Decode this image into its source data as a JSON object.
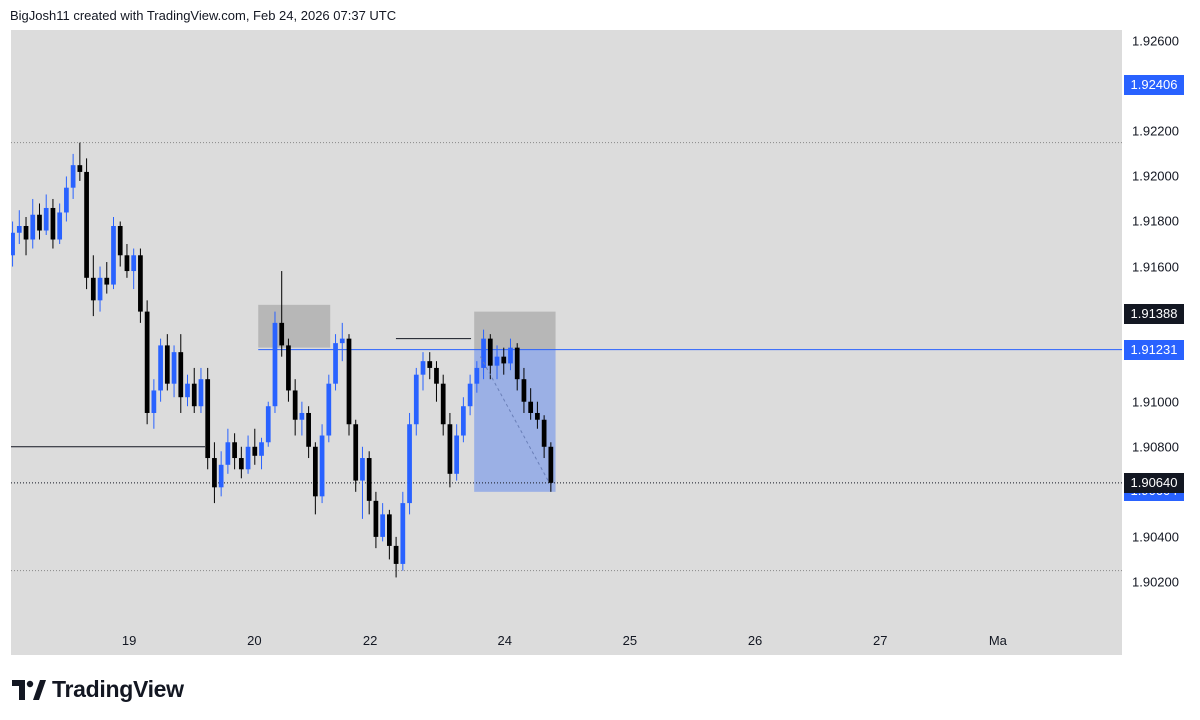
{
  "header": {
    "caption": "BigJosh11 created with TradingView.com, Feb 24, 2026 07:37 UTC"
  },
  "brand": {
    "name": "TradingView",
    "logo_icon": "tradingview-logo-icon"
  },
  "chart_data": {
    "type": "candlestick",
    "ylim": [
      1.9,
      1.9265
    ],
    "x_domain": [
      0,
      35.5
    ],
    "time_ticks": [
      {
        "x": 3.8,
        "label": "19"
      },
      {
        "x": 7.8,
        "label": "20"
      },
      {
        "x": 11.5,
        "label": "22"
      },
      {
        "x": 15.8,
        "label": "24"
      },
      {
        "x": 19.8,
        "label": "25"
      },
      {
        "x": 23.8,
        "label": "26"
      },
      {
        "x": 27.8,
        "label": "27"
      },
      {
        "x": 31.5,
        "label": "Ma"
      }
    ],
    "price_ticks": [
      "1.92600",
      "1.92200",
      "1.92000",
      "1.91800",
      "1.91600",
      "1.91000",
      "1.90800",
      "1.90400",
      "1.90200"
    ],
    "price_ticks_values": [
      1.926,
      1.922,
      1.92,
      1.918,
      1.916,
      1.91,
      1.908,
      1.904,
      1.902
    ],
    "price_labels": [
      {
        "value": 1.92406,
        "label": "1.92406",
        "color": "#2962ff"
      },
      {
        "value": 1.91388,
        "label": "1.91388",
        "color": "#131722"
      },
      {
        "value": 1.91231,
        "label": "1.91231",
        "color": "#2962ff"
      },
      {
        "value": 1.90604,
        "label": "1.90604",
        "color": "#2962ff"
      },
      {
        "value": 1.9064,
        "label": "1.90640",
        "color": "#131722"
      }
    ],
    "up_color": "#2962ff",
    "down_color": "#000000",
    "ohlc": [
      [
        1.9165,
        1.918,
        1.916,
        1.9175
      ],
      [
        1.9175,
        1.9185,
        1.917,
        1.9178
      ],
      [
        1.9178,
        1.9182,
        1.9165,
        1.9172
      ],
      [
        1.9172,
        1.919,
        1.9168,
        1.9183
      ],
      [
        1.9183,
        1.9188,
        1.9172,
        1.9176
      ],
      [
        1.9176,
        1.9192,
        1.9174,
        1.9186
      ],
      [
        1.9186,
        1.919,
        1.9168,
        1.9172
      ],
      [
        1.9172,
        1.9188,
        1.917,
        1.9184
      ],
      [
        1.9184,
        1.92,
        1.918,
        1.9195
      ],
      [
        1.9195,
        1.921,
        1.919,
        1.9205
      ],
      [
        1.9205,
        1.9215,
        1.9198,
        1.9202
      ],
      [
        1.9202,
        1.9208,
        1.915,
        1.9155
      ],
      [
        1.9155,
        1.9165,
        1.9138,
        1.9145
      ],
      [
        1.9145,
        1.916,
        1.914,
        1.9155
      ],
      [
        1.9155,
        1.9162,
        1.9148,
        1.9152
      ],
      [
        1.9152,
        1.9182,
        1.915,
        1.9178
      ],
      [
        1.9178,
        1.918,
        1.916,
        1.9165
      ],
      [
        1.9165,
        1.917,
        1.9155,
        1.9158
      ],
      [
        1.9158,
        1.9168,
        1.915,
        1.9165
      ],
      [
        1.9165,
        1.9168,
        1.9135,
        1.914
      ],
      [
        1.914,
        1.9145,
        1.909,
        1.9095
      ],
      [
        1.9095,
        1.911,
        1.9088,
        1.9105
      ],
      [
        1.9105,
        1.9128,
        1.91,
        1.9125
      ],
      [
        1.9125,
        1.913,
        1.9105,
        1.9108
      ],
      [
        1.9108,
        1.9125,
        1.9102,
        1.9122
      ],
      [
        1.9122,
        1.913,
        1.9095,
        1.9102
      ],
      [
        1.9102,
        1.9112,
        1.9098,
        1.9108
      ],
      [
        1.9108,
        1.9115,
        1.9095,
        1.9098
      ],
      [
        1.9098,
        1.9115,
        1.9095,
        1.911
      ],
      [
        1.911,
        1.9115,
        1.907,
        1.9075
      ],
      [
        1.9075,
        1.9082,
        1.9055,
        1.9062
      ],
      [
        1.9062,
        1.9078,
        1.9058,
        1.9072
      ],
      [
        1.9072,
        1.9088,
        1.9068,
        1.9082
      ],
      [
        1.9082,
        1.9086,
        1.907,
        1.9075
      ],
      [
        1.9075,
        1.908,
        1.9066,
        1.907
      ],
      [
        1.907,
        1.9085,
        1.9068,
        1.908
      ],
      [
        1.908,
        1.9088,
        1.9072,
        1.9076
      ],
      [
        1.9076,
        1.9084,
        1.907,
        1.9082
      ],
      [
        1.9082,
        1.91,
        1.908,
        1.9098
      ],
      [
        1.9098,
        1.914,
        1.9095,
        1.9135
      ],
      [
        1.9135,
        1.9158,
        1.912,
        1.9125
      ],
      [
        1.9125,
        1.9128,
        1.91,
        1.9105
      ],
      [
        1.9105,
        1.911,
        1.9085,
        1.9092
      ],
      [
        1.9092,
        1.91,
        1.9085,
        1.9095
      ],
      [
        1.9095,
        1.9098,
        1.9075,
        1.908
      ],
      [
        1.908,
        1.9082,
        1.905,
        1.9058
      ],
      [
        1.9058,
        1.909,
        1.9055,
        1.9085
      ],
      [
        1.9085,
        1.9112,
        1.9082,
        1.9108
      ],
      [
        1.9108,
        1.913,
        1.9105,
        1.9126
      ],
      [
        1.9126,
        1.9135,
        1.9118,
        1.9128
      ],
      [
        1.9128,
        1.913,
        1.9085,
        1.909
      ],
      [
        1.909,
        1.9092,
        1.906,
        1.9065
      ],
      [
        1.9065,
        1.908,
        1.9048,
        1.9075
      ],
      [
        1.9075,
        1.9078,
        1.905,
        1.9056
      ],
      [
        1.9056,
        1.906,
        1.9035,
        1.904
      ],
      [
        1.904,
        1.9055,
        1.9038,
        1.905
      ],
      [
        1.905,
        1.9052,
        1.903,
        1.9036
      ],
      [
        1.9036,
        1.904,
        1.9022,
        1.9028
      ],
      [
        1.9028,
        1.906,
        1.9025,
        1.9055
      ],
      [
        1.9055,
        1.9095,
        1.905,
        1.909
      ],
      [
        1.909,
        1.9115,
        1.9085,
        1.9112
      ],
      [
        1.9112,
        1.9122,
        1.9105,
        1.9118
      ],
      [
        1.9118,
        1.9122,
        1.911,
        1.9115
      ],
      [
        1.9115,
        1.9118,
        1.91,
        1.9108
      ],
      [
        1.9108,
        1.9112,
        1.9085,
        1.909
      ],
      [
        1.909,
        1.9095,
        1.9062,
        1.9068
      ],
      [
        1.9068,
        1.909,
        1.9065,
        1.9085
      ],
      [
        1.9085,
        1.9102,
        1.9082,
        1.9098
      ],
      [
        1.9098,
        1.9112,
        1.9094,
        1.9108
      ],
      [
        1.9108,
        1.9118,
        1.9104,
        1.9115
      ],
      [
        1.9115,
        1.9132,
        1.911,
        1.9128
      ],
      [
        1.9128,
        1.913,
        1.911,
        1.9116
      ],
      [
        1.9116,
        1.9125,
        1.911,
        1.912
      ],
      [
        1.912,
        1.9124,
        1.9112,
        1.9117
      ],
      [
        1.9117,
        1.9128,
        1.9114,
        1.9124
      ],
      [
        1.9124,
        1.9126,
        1.9105,
        1.911
      ],
      [
        1.911,
        1.9115,
        1.9095,
        1.91
      ],
      [
        1.91,
        1.9106,
        1.9092,
        1.9095
      ],
      [
        1.9095,
        1.91,
        1.9088,
        1.9092
      ],
      [
        1.9092,
        1.9094,
        1.9075,
        1.908
      ],
      [
        1.908,
        1.9082,
        1.906,
        1.9064
      ]
    ],
    "annotations": [
      {
        "kind": "rect",
        "x0": 7.9,
        "x1": 10.2,
        "y0": 1.9124,
        "y1": 1.9143,
        "color": "#b0b0b0"
      },
      {
        "kind": "rect",
        "x0": 14.8,
        "x1": 17.4,
        "y0": 1.9123,
        "y1": 1.914,
        "color": "#b0b0b0"
      },
      {
        "kind": "rect",
        "x0": 14.8,
        "x1": 17.4,
        "y0": 1.906,
        "y1": 1.9123,
        "color": "#8fa8e6"
      },
      {
        "kind": "hline",
        "x0": 7.9,
        "x1": 35.5,
        "y": 1.91231,
        "color": "#2962ff",
        "style": "solid"
      },
      {
        "kind": "hline",
        "x0": 0,
        "x1": 6.2,
        "y": 1.908,
        "color": "#131722",
        "style": "solid"
      },
      {
        "kind": "hline",
        "x0": 0,
        "x1": 35.5,
        "y": 1.9064,
        "color": "#131722",
        "style": "dotted"
      },
      {
        "kind": "hline",
        "x0": 0,
        "x1": 35.5,
        "y": 1.9215,
        "color": "#888888",
        "style": "dotted"
      },
      {
        "kind": "hline",
        "x0": 0,
        "x1": 35.5,
        "y": 1.9025,
        "color": "#888888",
        "style": "dotted"
      },
      {
        "kind": "hline",
        "x0": 12.3,
        "x1": 14.7,
        "y": 1.9128,
        "color": "#131722",
        "style": "solid"
      }
    ]
  }
}
